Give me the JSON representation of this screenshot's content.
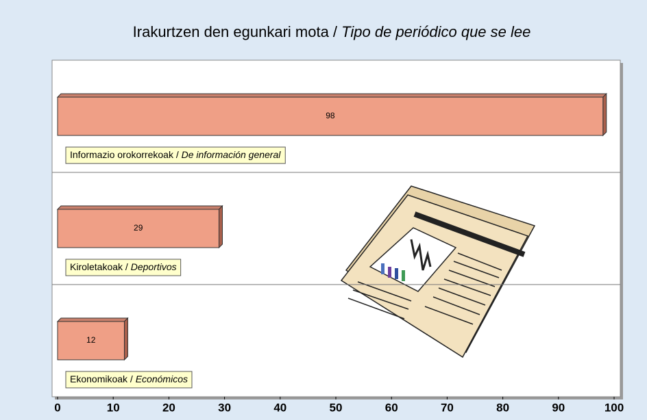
{
  "chart_data": {
    "type": "bar",
    "orientation": "horizontal",
    "title": [
      "Irakurtzen den egunkari mota / ",
      "Tipo de periódico que se lee"
    ],
    "categories": [
      [
        "Informazio orokorrekoak / ",
        "De información general"
      ],
      [
        "Kiroletakoak / ",
        "Deportivos"
      ],
      [
        "Ekonomikoak / ",
        "Económicos"
      ]
    ],
    "values": [
      98,
      29,
      12
    ],
    "color": "#ef9f86",
    "xlim": [
      0,
      100
    ],
    "xticks": [
      0,
      10,
      20,
      30,
      40,
      50,
      60,
      70,
      80,
      90,
      100
    ],
    "grid": false
  }
}
